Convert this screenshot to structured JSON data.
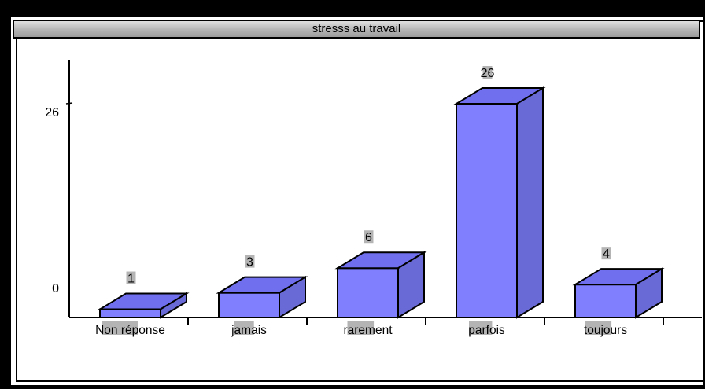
{
  "chart_data": {
    "type": "bar",
    "title": "stresss au travail",
    "categories": [
      "Non réponse",
      "jamais",
      "rarement",
      "parfois",
      "toujours"
    ],
    "values": [
      1,
      3,
      6,
      26,
      4
    ],
    "y_tick_labels": [
      "0",
      "26"
    ],
    "ylim": [
      0,
      26
    ],
    "xlabel": "",
    "ylabel": "",
    "grid": false,
    "style": "3d",
    "colors": {
      "bar_front": "#8080ff",
      "bar_top": "#7070ee",
      "bar_side": "#6a6ad6",
      "label_bg": "#b4b4b4"
    }
  }
}
